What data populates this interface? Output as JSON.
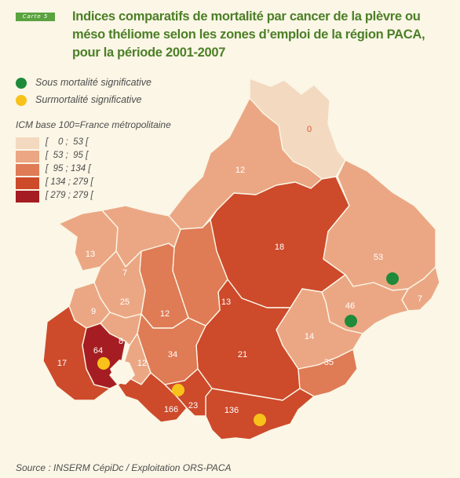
{
  "map_tag": "Carte 5",
  "title": "Indices comparatifs de mortalité par cancer de la plèvre ou méso théliome selon les zones d’emploi de la région PACA, pour la période 2001-2007",
  "legend": {
    "under": {
      "label": "Sous mortalité significative",
      "color": "#1e8a3a"
    },
    "over": {
      "label": "Surmortalité significative",
      "color": "#f8c21a"
    },
    "icm_title": "ICM base 100=France métropolitaine",
    "classes": [
      {
        "range": "[    0 ;  53 [",
        "color": "#f3d9bf"
      },
      {
        "range": "[  53 ;  95 [",
        "color": "#eba784"
      },
      {
        "range": "[  95 ; 134 [",
        "color": "#df7b55"
      },
      {
        "range": "[ 134 ; 279 [",
        "color": "#cd4a2b"
      },
      {
        "range": "[ 279 ; 279 [",
        "color": "#a51d22"
      }
    ]
  },
  "zones": [
    {
      "value": "0"
    },
    {
      "value": "12"
    },
    {
      "value": "18"
    },
    {
      "value": "53"
    },
    {
      "value": "7"
    },
    {
      "value": "46"
    },
    {
      "value": "13"
    },
    {
      "value": "7"
    },
    {
      "value": "25"
    },
    {
      "value": "9"
    },
    {
      "value": "12"
    },
    {
      "value": "13"
    },
    {
      "value": "64"
    },
    {
      "value": "8"
    },
    {
      "value": "17"
    },
    {
      "value": "12"
    },
    {
      "value": "34"
    },
    {
      "value": "21"
    },
    {
      "value": "14"
    },
    {
      "value": "35"
    },
    {
      "value": "166"
    },
    {
      "value": "23"
    },
    {
      "value": "136"
    }
  ],
  "source": "Source : INSERM CépiDc / Exploitation ORS-PACA"
}
